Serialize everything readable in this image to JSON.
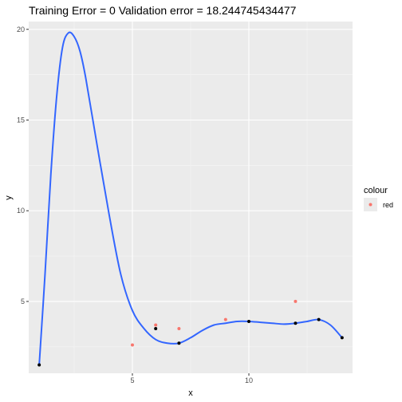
{
  "chart_data": {
    "type": "scatter",
    "title": "Training Error =  0 Validation error =  18.244745434477",
    "xlabel": "x",
    "ylabel": "y",
    "xlim": [
      0.55,
      14.45
    ],
    "ylim": [
      1.04,
      20.43
    ],
    "x_ticks": [
      5,
      10
    ],
    "y_ticks": [
      5,
      10,
      15,
      20
    ],
    "grid": true,
    "legend_position": "right",
    "legend_title": "colour",
    "series": [
      {
        "name": "red",
        "kind": "points",
        "color": "#F8766D",
        "x": [
          5,
          6,
          7,
          9,
          12
        ],
        "y": [
          2.6,
          3.7,
          3.5,
          4.0,
          5.0
        ]
      },
      {
        "kind": "points",
        "color": "#000000",
        "x": [
          1,
          6,
          7,
          10,
          12,
          13,
          14
        ],
        "y": [
          1.5,
          3.5,
          2.7,
          3.9,
          3.8,
          4.0,
          3.0
        ]
      },
      {
        "kind": "line",
        "color": "#3366FF",
        "x": [
          1,
          1.25,
          1.5,
          1.75,
          2,
          2.25,
          2.5,
          2.75,
          3,
          3.5,
          4,
          4.5,
          5,
          5.5,
          6,
          6.5,
          7,
          7.5,
          8,
          8.5,
          9,
          9.5,
          10,
          10.5,
          11,
          11.5,
          12,
          12.5,
          13,
          13.5,
          14
        ],
        "y": [
          1.5,
          6.5,
          12.0,
          16.3,
          19.0,
          19.8,
          19.6,
          18.8,
          17.3,
          13.5,
          9.8,
          6.5,
          4.5,
          3.5,
          2.9,
          2.7,
          2.7,
          3.0,
          3.4,
          3.7,
          3.8,
          3.9,
          3.9,
          3.85,
          3.8,
          3.75,
          3.8,
          3.9,
          4.0,
          3.7,
          3.0
        ]
      }
    ]
  }
}
